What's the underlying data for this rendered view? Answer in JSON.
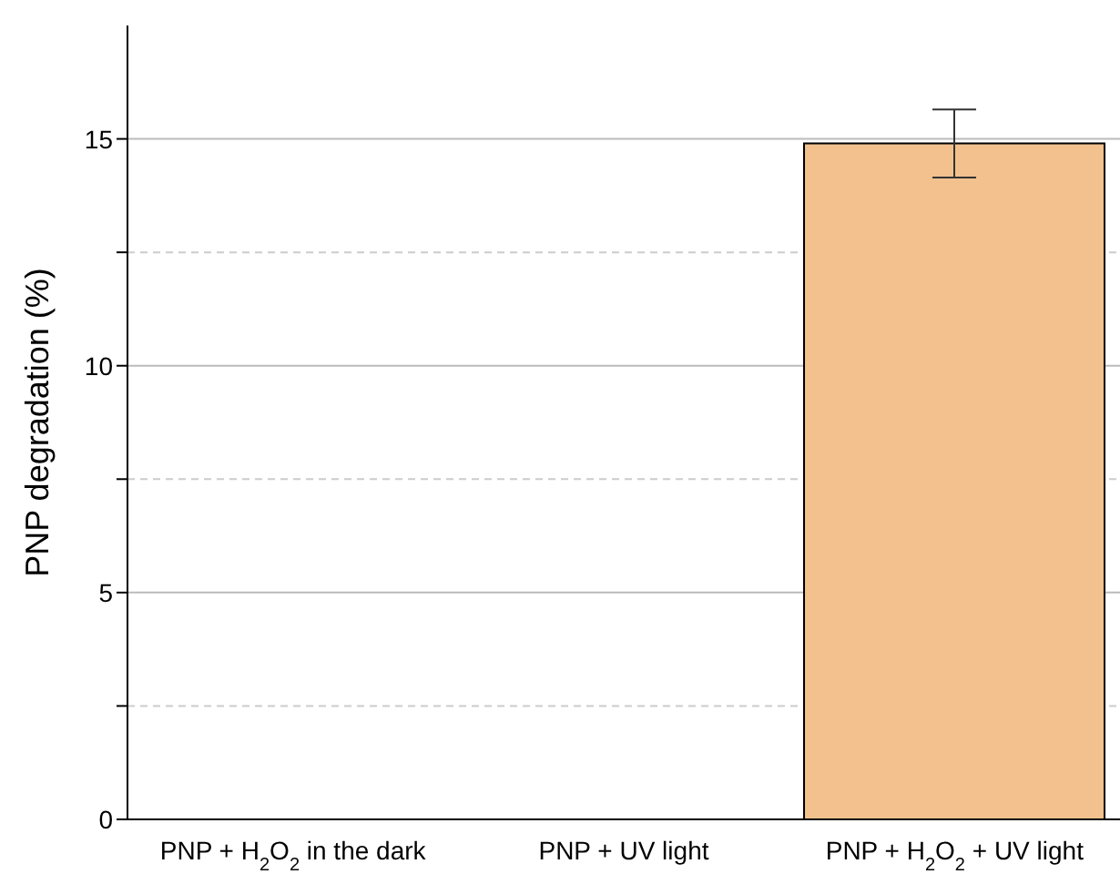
{
  "chart_data": {
    "type": "bar",
    "ylabel": "PNP degradation (%)",
    "categories": [
      "PNP + H$_{2}$O$_{2}$ in the dark",
      "PNP + UV light",
      "PNP + H$_{2}$O$_{2}$ + UV light"
    ],
    "values": [
      0,
      0,
      14.9
    ],
    "errors": [
      null,
      null,
      0.75
    ],
    "color": "#f2c18d",
    "ylim": [
      0,
      17.5
    ],
    "yticks": [
      0,
      {
        "value": 2.5,
        "label": null
      },
      5,
      {
        "value": 7.5,
        "label": null
      },
      10,
      {
        "value": 12.5,
        "label": null
      },
      15
    ],
    "grid": "y"
  }
}
